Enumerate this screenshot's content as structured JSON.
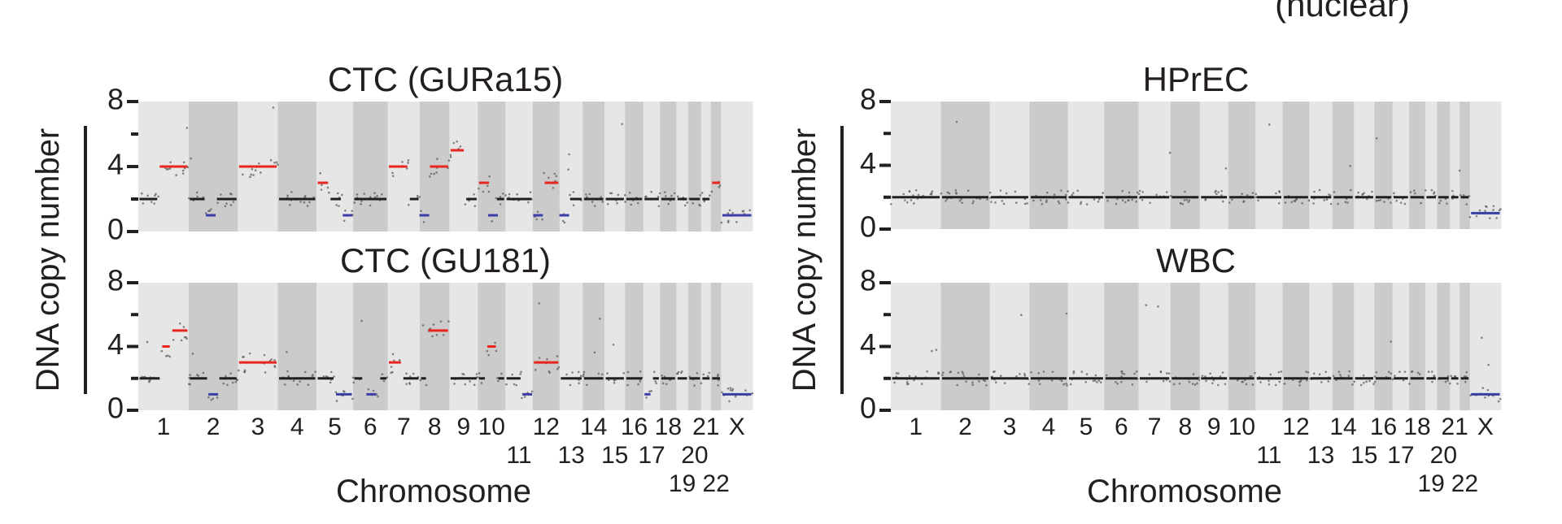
{
  "top_right_label": "(nuclear)",
  "colors": {
    "gain": "#e8251f",
    "loss": "#3a3ea6",
    "neutral": "#231f20",
    "band_light": "#e6e6e6",
    "band_dark": "#cbcbcb",
    "dot": "#555555"
  },
  "chromosomes": {
    "names": [
      "1",
      "2",
      "3",
      "4",
      "5",
      "6",
      "7",
      "8",
      "9",
      "10",
      "11",
      "12",
      "13",
      "14",
      "15",
      "16",
      "17",
      "18",
      "19",
      "20",
      "21",
      "22",
      "X"
    ],
    "relative_lengths": [
      249,
      243,
      198,
      191,
      181,
      171,
      159,
      146,
      141,
      136,
      135,
      133,
      115,
      107,
      102,
      90,
      83,
      80,
      59,
      64,
      48,
      51,
      155
    ],
    "label_rows": [
      [
        {
          "t": "1",
          "c": 0
        },
        {
          "t": "2",
          "c": 1
        },
        {
          "t": "3",
          "c": 2
        },
        {
          "t": "4",
          "c": 3
        },
        {
          "t": "5",
          "c": 4
        },
        {
          "t": "6",
          "c": 5
        },
        {
          "t": "7",
          "c": 6
        },
        {
          "t": "8",
          "c": 7
        },
        {
          "t": "9",
          "c": 8
        },
        {
          "t": "10",
          "c": 9
        },
        {
          "t": "12",
          "c": 11
        },
        {
          "t": "14",
          "c": 13
        },
        {
          "t": "16",
          "c": 15
        },
        {
          "t": "18",
          "c": 17
        },
        {
          "t": "21",
          "c": 20
        },
        {
          "t": "X",
          "c": 22
        }
      ],
      [
        {
          "t": "11",
          "c": 10
        },
        {
          "t": "13",
          "c": 12
        },
        {
          "t": "15",
          "c": 14
        },
        {
          "t": "17",
          "c": 16
        },
        {
          "t": "20",
          "c": 19
        }
      ],
      [
        {
          "t": "19",
          "c": 18
        },
        {
          "t": "22",
          "c": 21
        }
      ]
    ]
  },
  "left_group": {
    "ylabel": "DNA copy number",
    "xlabel": "Chromosome"
  },
  "right_group": {
    "ylabel": "DNA copy number",
    "xlabel": "Chromosome"
  },
  "chart_data": [
    {
      "type": "scatter",
      "title": "CTC (GURa15)",
      "ylabel": "DNA copy number",
      "xlabel": "Chromosome",
      "ylim": [
        0,
        8
      ],
      "yticks": [
        0,
        4,
        8
      ],
      "segments": [
        {
          "chr": "1",
          "start": 0.0,
          "end": 0.4,
          "cn": 2
        },
        {
          "chr": "1",
          "start": 0.4,
          "end": 1.0,
          "cn": 4
        },
        {
          "chr": "2",
          "start": 0.0,
          "end": 0.35,
          "cn": 2
        },
        {
          "chr": "2",
          "start": 0.35,
          "end": 0.55,
          "cn": 1
        },
        {
          "chr": "2",
          "start": 0.55,
          "end": 1.0,
          "cn": 2
        },
        {
          "chr": "3",
          "start": 0.0,
          "end": 1.0,
          "cn": 4
        },
        {
          "chr": "4",
          "start": 0.0,
          "end": 1.0,
          "cn": 2
        },
        {
          "chr": "5",
          "start": 0.0,
          "end": 0.35,
          "cn": 3
        },
        {
          "chr": "5",
          "start": 0.35,
          "end": 0.7,
          "cn": 2
        },
        {
          "chr": "5",
          "start": 0.7,
          "end": 1.0,
          "cn": 1
        },
        {
          "chr": "6",
          "start": 0.0,
          "end": 1.0,
          "cn": 2
        },
        {
          "chr": "7",
          "start": 0.0,
          "end": 0.65,
          "cn": 4
        },
        {
          "chr": "7",
          "start": 0.65,
          "end": 1.0,
          "cn": 2
        },
        {
          "chr": "8",
          "start": 0.0,
          "end": 0.3,
          "cn": 1
        },
        {
          "chr": "8",
          "start": 0.3,
          "end": 1.0,
          "cn": 4
        },
        {
          "chr": "9",
          "start": 0.0,
          "end": 0.55,
          "cn": 5
        },
        {
          "chr": "9",
          "start": 0.55,
          "end": 1.0,
          "cn": 2
        },
        {
          "chr": "10",
          "start": 0.0,
          "end": 0.45,
          "cn": 3
        },
        {
          "chr": "10",
          "start": 0.45,
          "end": 0.65,
          "cn": 1
        },
        {
          "chr": "10",
          "start": 0.65,
          "end": 1.0,
          "cn": 2
        },
        {
          "chr": "11",
          "start": 0.0,
          "end": 1.0,
          "cn": 2
        },
        {
          "chr": "12",
          "start": 0.0,
          "end": 0.4,
          "cn": 1
        },
        {
          "chr": "12",
          "start": 0.4,
          "end": 1.0,
          "cn": 3
        },
        {
          "chr": "13",
          "start": 0.0,
          "end": 0.4,
          "cn": 1
        },
        {
          "chr": "13",
          "start": 0.4,
          "end": 1.0,
          "cn": 2
        },
        {
          "chr": "14",
          "start": 0.0,
          "end": 1.0,
          "cn": 2
        },
        {
          "chr": "15",
          "start": 0.0,
          "end": 1.0,
          "cn": 2
        },
        {
          "chr": "16",
          "start": 0.0,
          "end": 1.0,
          "cn": 2
        },
        {
          "chr": "17",
          "start": 0.0,
          "end": 1.0,
          "cn": 2
        },
        {
          "chr": "18",
          "start": 0.0,
          "end": 1.0,
          "cn": 2
        },
        {
          "chr": "19",
          "start": 0.0,
          "end": 1.0,
          "cn": 2
        },
        {
          "chr": "20",
          "start": 0.0,
          "end": 1.0,
          "cn": 2
        },
        {
          "chr": "21",
          "start": 0.0,
          "end": 1.0,
          "cn": 2
        },
        {
          "chr": "22",
          "start": 0.0,
          "end": 1.0,
          "cn": 3
        },
        {
          "chr": "X",
          "start": 0.0,
          "end": 1.0,
          "cn": 1
        }
      ]
    },
    {
      "type": "scatter",
      "title": "CTC (GU181)",
      "ylabel": "DNA copy number",
      "xlabel": "Chromosome",
      "ylim": [
        0,
        8
      ],
      "yticks": [
        0,
        4,
        8
      ],
      "segments": [
        {
          "chr": "1",
          "start": 0.0,
          "end": 0.45,
          "cn": 2
        },
        {
          "chr": "1",
          "start": 0.45,
          "end": 0.65,
          "cn": 4
        },
        {
          "chr": "1",
          "start": 0.65,
          "end": 1.0,
          "cn": 5
        },
        {
          "chr": "2",
          "start": 0.0,
          "end": 0.4,
          "cn": 2
        },
        {
          "chr": "2",
          "start": 0.4,
          "end": 0.6,
          "cn": 1
        },
        {
          "chr": "2",
          "start": 0.6,
          "end": 1.0,
          "cn": 2
        },
        {
          "chr": "3",
          "start": 0.0,
          "end": 1.0,
          "cn": 3
        },
        {
          "chr": "4",
          "start": 0.0,
          "end": 1.0,
          "cn": 2
        },
        {
          "chr": "5",
          "start": 0.0,
          "end": 0.5,
          "cn": 2
        },
        {
          "chr": "5",
          "start": 0.5,
          "end": 1.0,
          "cn": 1
        },
        {
          "chr": "6",
          "start": 0.0,
          "end": 0.3,
          "cn": 2
        },
        {
          "chr": "6",
          "start": 0.3,
          "end": 0.75,
          "cn": 1
        },
        {
          "chr": "6",
          "start": 0.75,
          "end": 1.0,
          "cn": 2
        },
        {
          "chr": "7",
          "start": 0.0,
          "end": 0.45,
          "cn": 3
        },
        {
          "chr": "7",
          "start": 0.45,
          "end": 1.0,
          "cn": 2
        },
        {
          "chr": "8",
          "start": 0.0,
          "end": 0.25,
          "cn": 2
        },
        {
          "chr": "8",
          "start": 0.25,
          "end": 1.0,
          "cn": 5
        },
        {
          "chr": "9",
          "start": 0.0,
          "end": 1.0,
          "cn": 2
        },
        {
          "chr": "10",
          "start": 0.0,
          "end": 0.3,
          "cn": 2
        },
        {
          "chr": "10",
          "start": 0.3,
          "end": 0.7,
          "cn": 4
        },
        {
          "chr": "10",
          "start": 0.7,
          "end": 1.0,
          "cn": 2
        },
        {
          "chr": "11",
          "start": 0.0,
          "end": 0.6,
          "cn": 2
        },
        {
          "chr": "11",
          "start": 0.6,
          "end": 1.0,
          "cn": 1
        },
        {
          "chr": "12",
          "start": 0.0,
          "end": 1.0,
          "cn": 3
        },
        {
          "chr": "13",
          "start": 0.0,
          "end": 1.0,
          "cn": 2
        },
        {
          "chr": "14",
          "start": 0.0,
          "end": 1.0,
          "cn": 2
        },
        {
          "chr": "15",
          "start": 0.0,
          "end": 1.0,
          "cn": 2
        },
        {
          "chr": "16",
          "start": 0.0,
          "end": 1.0,
          "cn": 2
        },
        {
          "chr": "17",
          "start": 0.0,
          "end": 0.5,
          "cn": 1
        },
        {
          "chr": "17",
          "start": 0.5,
          "end": 1.0,
          "cn": 2
        },
        {
          "chr": "18",
          "start": 0.0,
          "end": 1.0,
          "cn": 2
        },
        {
          "chr": "19",
          "start": 0.0,
          "end": 1.0,
          "cn": 2
        },
        {
          "chr": "20",
          "start": 0.0,
          "end": 1.0,
          "cn": 2
        },
        {
          "chr": "21",
          "start": 0.0,
          "end": 1.0,
          "cn": 2
        },
        {
          "chr": "22",
          "start": 0.0,
          "end": 1.0,
          "cn": 2
        },
        {
          "chr": "X",
          "start": 0.0,
          "end": 1.0,
          "cn": 1
        }
      ]
    },
    {
      "type": "scatter",
      "title": "HPrEC",
      "ylabel": "DNA copy number",
      "xlabel": "Chromosome",
      "ylim": [
        0,
        8
      ],
      "yticks": [
        0,
        4,
        8
      ],
      "segments": [
        {
          "chr": "1",
          "start": 0.0,
          "end": 1.0,
          "cn": 2
        },
        {
          "chr": "2",
          "start": 0.0,
          "end": 1.0,
          "cn": 2
        },
        {
          "chr": "3",
          "start": 0.0,
          "end": 1.0,
          "cn": 2
        },
        {
          "chr": "4",
          "start": 0.0,
          "end": 1.0,
          "cn": 2
        },
        {
          "chr": "5",
          "start": 0.0,
          "end": 1.0,
          "cn": 2
        },
        {
          "chr": "6",
          "start": 0.0,
          "end": 1.0,
          "cn": 2
        },
        {
          "chr": "7",
          "start": 0.0,
          "end": 1.0,
          "cn": 2
        },
        {
          "chr": "8",
          "start": 0.0,
          "end": 1.0,
          "cn": 2
        },
        {
          "chr": "9",
          "start": 0.0,
          "end": 1.0,
          "cn": 2
        },
        {
          "chr": "10",
          "start": 0.0,
          "end": 1.0,
          "cn": 2
        },
        {
          "chr": "11",
          "start": 0.0,
          "end": 1.0,
          "cn": 2
        },
        {
          "chr": "12",
          "start": 0.0,
          "end": 1.0,
          "cn": 2
        },
        {
          "chr": "13",
          "start": 0.0,
          "end": 1.0,
          "cn": 2
        },
        {
          "chr": "14",
          "start": 0.0,
          "end": 1.0,
          "cn": 2
        },
        {
          "chr": "15",
          "start": 0.0,
          "end": 1.0,
          "cn": 2
        },
        {
          "chr": "16",
          "start": 0.0,
          "end": 1.0,
          "cn": 2
        },
        {
          "chr": "17",
          "start": 0.0,
          "end": 1.0,
          "cn": 2
        },
        {
          "chr": "18",
          "start": 0.0,
          "end": 1.0,
          "cn": 2
        },
        {
          "chr": "19",
          "start": 0.0,
          "end": 1.0,
          "cn": 2
        },
        {
          "chr": "20",
          "start": 0.0,
          "end": 1.0,
          "cn": 2
        },
        {
          "chr": "21",
          "start": 0.0,
          "end": 1.0,
          "cn": 2
        },
        {
          "chr": "22",
          "start": 0.0,
          "end": 1.0,
          "cn": 2
        },
        {
          "chr": "X",
          "start": 0.0,
          "end": 1.0,
          "cn": 1
        }
      ]
    },
    {
      "type": "scatter",
      "title": "WBC",
      "ylabel": "DNA copy number",
      "xlabel": "Chromosome",
      "ylim": [
        0,
        8
      ],
      "yticks": [
        0,
        4,
        8
      ],
      "segments": [
        {
          "chr": "1",
          "start": 0.0,
          "end": 1.0,
          "cn": 2
        },
        {
          "chr": "2",
          "start": 0.0,
          "end": 1.0,
          "cn": 2
        },
        {
          "chr": "3",
          "start": 0.0,
          "end": 1.0,
          "cn": 2
        },
        {
          "chr": "4",
          "start": 0.0,
          "end": 1.0,
          "cn": 2
        },
        {
          "chr": "5",
          "start": 0.0,
          "end": 1.0,
          "cn": 2
        },
        {
          "chr": "6",
          "start": 0.0,
          "end": 1.0,
          "cn": 2
        },
        {
          "chr": "7",
          "start": 0.0,
          "end": 1.0,
          "cn": 2
        },
        {
          "chr": "8",
          "start": 0.0,
          "end": 1.0,
          "cn": 2
        },
        {
          "chr": "9",
          "start": 0.0,
          "end": 1.0,
          "cn": 2
        },
        {
          "chr": "10",
          "start": 0.0,
          "end": 1.0,
          "cn": 2
        },
        {
          "chr": "11",
          "start": 0.0,
          "end": 1.0,
          "cn": 2
        },
        {
          "chr": "12",
          "start": 0.0,
          "end": 1.0,
          "cn": 2
        },
        {
          "chr": "13",
          "start": 0.0,
          "end": 1.0,
          "cn": 2
        },
        {
          "chr": "14",
          "start": 0.0,
          "end": 1.0,
          "cn": 2
        },
        {
          "chr": "15",
          "start": 0.0,
          "end": 1.0,
          "cn": 2
        },
        {
          "chr": "16",
          "start": 0.0,
          "end": 1.0,
          "cn": 2
        },
        {
          "chr": "17",
          "start": 0.0,
          "end": 1.0,
          "cn": 2
        },
        {
          "chr": "18",
          "start": 0.0,
          "end": 1.0,
          "cn": 2
        },
        {
          "chr": "19",
          "start": 0.0,
          "end": 1.0,
          "cn": 2
        },
        {
          "chr": "20",
          "start": 0.0,
          "end": 1.0,
          "cn": 2
        },
        {
          "chr": "21",
          "start": 0.0,
          "end": 1.0,
          "cn": 2
        },
        {
          "chr": "22",
          "start": 0.0,
          "end": 1.0,
          "cn": 2
        },
        {
          "chr": "X",
          "start": 0.0,
          "end": 1.0,
          "cn": 1
        }
      ]
    }
  ]
}
